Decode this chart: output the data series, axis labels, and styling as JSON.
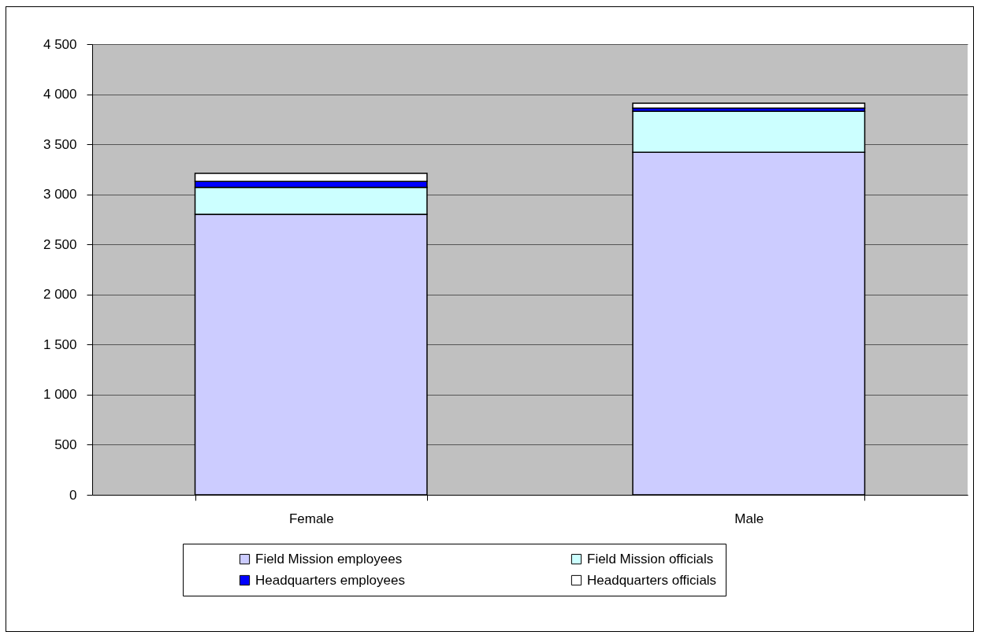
{
  "chart_data": {
    "type": "bar",
    "categories": [
      "Female",
      "Male"
    ],
    "stacked": true,
    "series": [
      {
        "name": "Field Mission employees",
        "color": "#ccccff",
        "values": [
          2800,
          3420
        ]
      },
      {
        "name": "Field Mission officials",
        "color": "#ccffff",
        "values": [
          270,
          410
        ]
      },
      {
        "name": "Headquarters employees",
        "color": "#0000ff",
        "values": [
          60,
          30
        ]
      },
      {
        "name": "Headquarters officials",
        "color": "#ffffff",
        "values": [
          80,
          50
        ]
      }
    ],
    "ylim": [
      0,
      4500
    ],
    "yticks": [
      0,
      500,
      {
        "value": 1000,
        "label": "1 000"
      },
      {
        "value": 1500,
        "label": "1 500"
      },
      {
        "value": 2000,
        "label": "2 000"
      },
      {
        "value": 2500,
        "label": "2 500"
      },
      {
        "value": 3000,
        "label": "3 000"
      },
      {
        "value": 3500,
        "label": "3 500"
      },
      {
        "value": 4000,
        "label": "4 000"
      },
      {
        "value": 4500,
        "label": "4 500"
      }
    ],
    "grid": "y",
    "legend": "bottom"
  }
}
